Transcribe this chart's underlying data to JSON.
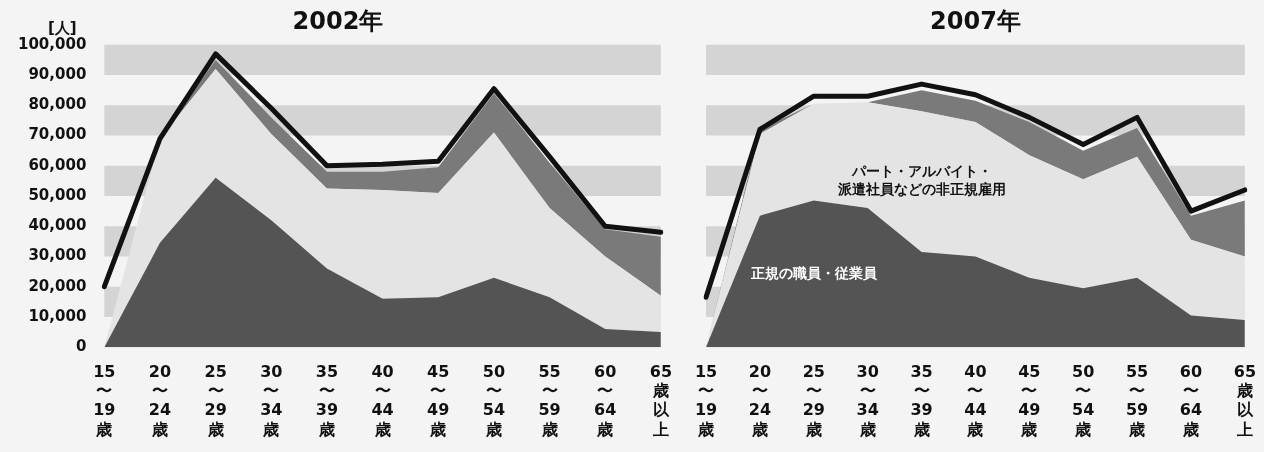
{
  "chart_data": [
    {
      "type": "area",
      "title": "2002年",
      "ylabel": "[人]",
      "stacked": true,
      "legend": false,
      "bands": [
        {
          "axis": "y",
          "from": 90000,
          "to": 100000,
          "color": "#d4d4d4"
        },
        {
          "axis": "y",
          "from": 70000,
          "to": 80000,
          "color": "#d4d4d4"
        },
        {
          "axis": "y",
          "from": 50000,
          "to": 60000,
          "color": "#d4d4d4"
        },
        {
          "axis": "y",
          "from": 30000,
          "to": 40000,
          "color": "#d4d4d4"
        },
        {
          "axis": "y",
          "from": 10000,
          "to": 20000,
          "color": "#d4d4d4"
        }
      ],
      "categories": [
        "15〜19歳",
        "20〜24歳",
        "25〜29歳",
        "30〜34歳",
        "35〜39歳",
        "40〜44歳",
        "45〜49歳",
        "50〜54歳",
        "55〜59歳",
        "60〜64歳",
        "65歳以上"
      ],
      "ylim": [
        0,
        100000
      ],
      "yticks": [
        0,
        {
          "value": 10000,
          "label": "10,000"
        },
        {
          "value": 20000,
          "label": "20,000"
        },
        {
          "value": 30000,
          "label": "30,000"
        },
        {
          "value": 40000,
          "label": "40,000"
        },
        {
          "value": 50000,
          "label": "50,000"
        },
        {
          "value": 60000,
          "label": "60,000"
        },
        {
          "value": 70000,
          "label": "70,000"
        },
        {
          "value": 80000,
          "label": "80,000"
        },
        {
          "value": 90000,
          "label": "90,000"
        },
        {
          "value": 100000,
          "label": "100,000"
        }
      ],
      "series": [
        {
          "color": "#545454",
          "values": [
            0,
            34500,
            56000,
            42000,
            26000,
            16000,
            16500,
            23000,
            16500,
            6000,
            5000
          ]
        },
        {
          "color": "#e4e4e4",
          "values": [
            0,
            34500,
            36000,
            28500,
            26500,
            36000,
            34500,
            48000,
            29500,
            24000,
            12000
          ]
        },
        {
          "color": "#7a7a7a",
          "values": [
            0,
            0,
            3000,
            5500,
            5500,
            6000,
            8500,
            13000,
            15000,
            9000,
            19500
          ]
        },
        {
          "type": "line",
          "color": "#111111",
          "values": [
            20000,
            69000,
            97000,
            79000,
            60000,
            60500,
            61500,
            85500,
            63000,
            40000,
            38000
          ]
        }
      ]
    },
    {
      "type": "area",
      "title": "2007年",
      "stacked": true,
      "legend": false,
      "tick_labels": "x",
      "bands": [
        {
          "axis": "y",
          "from": 90000,
          "to": 100000,
          "color": "#d4d4d4"
        },
        {
          "axis": "y",
          "from": 70000,
          "to": 80000,
          "color": "#d4d4d4"
        },
        {
          "axis": "y",
          "from": 50000,
          "to": 60000,
          "color": "#d4d4d4"
        },
        {
          "axis": "y",
          "from": 30000,
          "to": 40000,
          "color": "#d4d4d4"
        },
        {
          "axis": "y",
          "from": 10000,
          "to": 20000,
          "color": "#d4d4d4"
        }
      ],
      "categories": [
        "15〜19歳",
        "20〜24歳",
        "25〜29歳",
        "30〜34歳",
        "35〜39歳",
        "40〜44歳",
        "45〜49歳",
        "50〜54歳",
        "55〜59歳",
        "60〜64歳",
        "65歳以上"
      ],
      "ylim": [
        0,
        100000
      ],
      "series": [
        {
          "name": "正規の職員・従業員",
          "color": "#545454",
          "values": [
            0,
            43500,
            48500,
            46000,
            31500,
            30000,
            23000,
            19500,
            23000,
            10500,
            9000
          ]
        },
        {
          "name": "パート・アルバイト・派遣社員などの非正規雇用",
          "color": "#e4e4e4",
          "values": [
            0,
            27000,
            32000,
            35000,
            46500,
            44500,
            40500,
            36000,
            40000,
            25000,
            21000
          ]
        },
        {
          "color": "#7a7a7a",
          "values": [
            0,
            1500,
            0,
            0,
            7000,
            7000,
            11000,
            9500,
            9500,
            8000,
            18500
          ]
        },
        {
          "type": "line",
          "color": "#111111",
          "values": [
            16500,
            72000,
            83000,
            83000,
            87000,
            83500,
            76000,
            67000,
            76000,
            45000,
            52000
          ]
        }
      ]
    }
  ]
}
